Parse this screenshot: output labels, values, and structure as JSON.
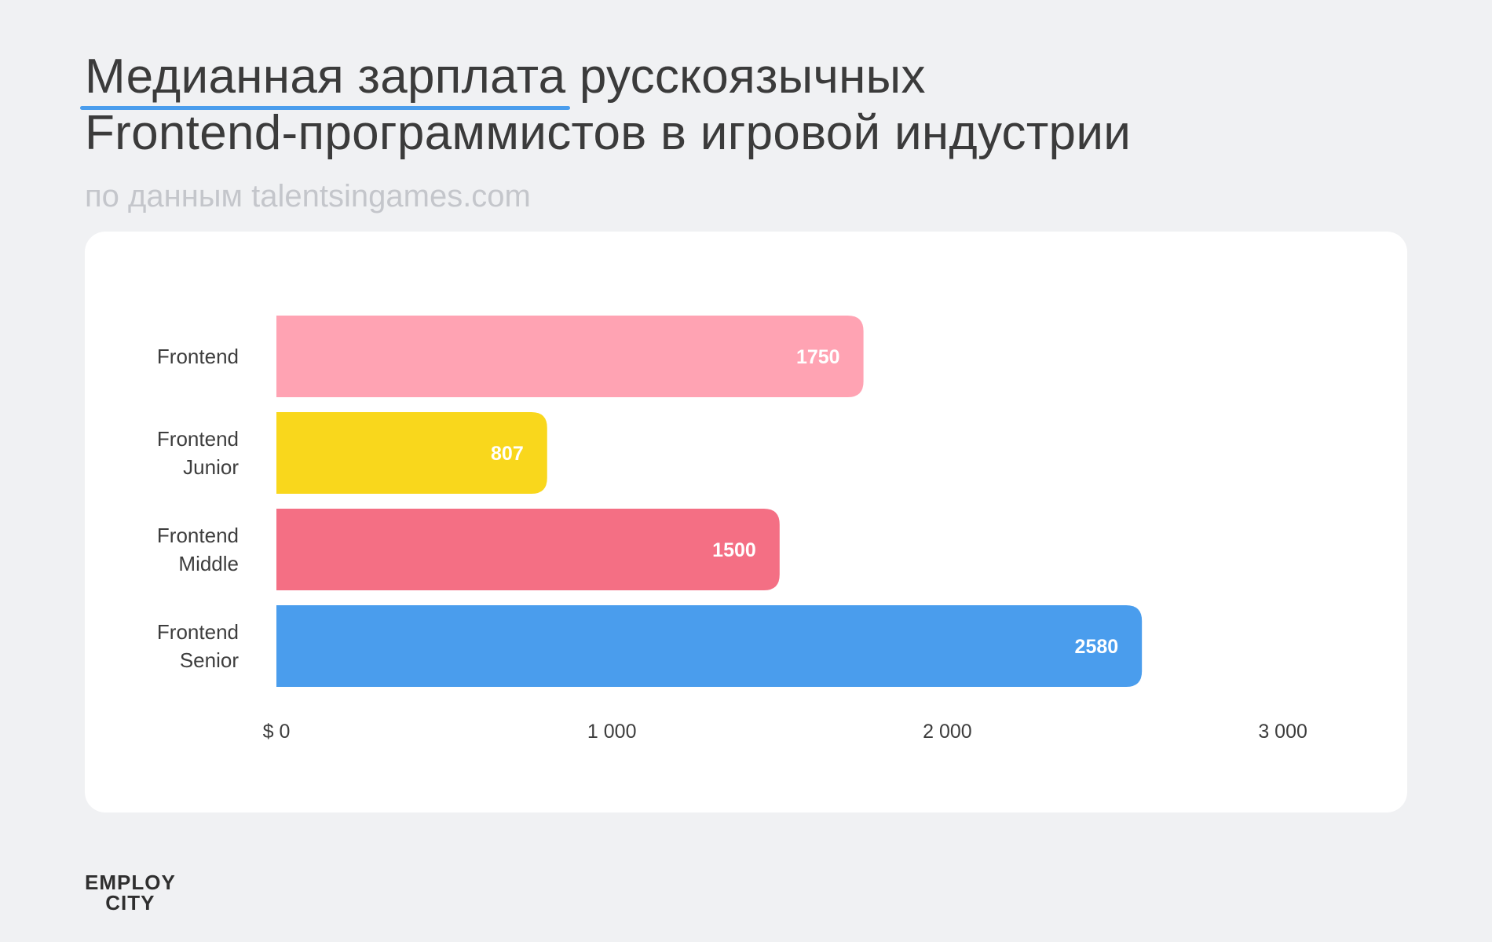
{
  "header": {
    "title_highlight": "Медианная зарплата",
    "title_rest_line1": "русскоязычных",
    "title_line2": "Frontend-программистов в игровой индустрии",
    "subtitle": "по данным talentsingames.com"
  },
  "colors": {
    "background": "#f0f1f3",
    "card": "#ffffff",
    "accent_underline": "#4a9ded"
  },
  "chart_data": {
    "type": "bar",
    "orientation": "horizontal",
    "categories": [
      [
        "Frontend"
      ],
      [
        "Frontend",
        "Junior"
      ],
      [
        "Frontend",
        "Middle"
      ],
      [
        "Frontend",
        "Senior"
      ]
    ],
    "values": [
      1750,
      807,
      1500,
      2580
    ],
    "value_labels": [
      "1750",
      "807",
      "1500",
      "2580"
    ],
    "bar_colors": [
      "#ffa3b3",
      "#f9d71c",
      "#f46f84",
      "#4a9ded"
    ],
    "xlim": [
      0,
      3000
    ],
    "x_ticks": [
      0,
      1000,
      2000,
      3000
    ],
    "x_tick_labels": [
      "$ 0",
      "1 000",
      "2 000",
      "3 000"
    ],
    "grid": false,
    "legend": "none"
  },
  "logo": {
    "line1": "EMPLOY",
    "line2": "CITY"
  }
}
